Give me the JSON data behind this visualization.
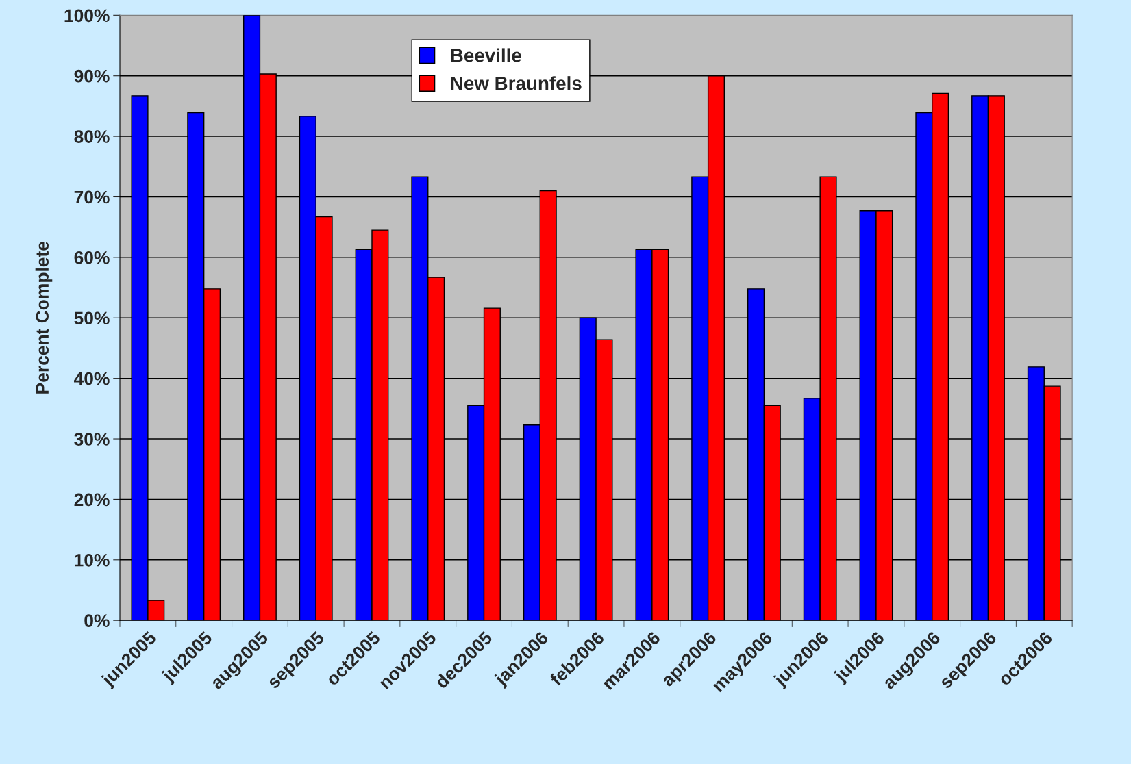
{
  "chart_data": {
    "type": "bar",
    "ylabel": "Percent Complete",
    "categories": [
      "jun2005",
      "jul2005",
      "aug2005",
      "sep2005",
      "oct2005",
      "nov2005",
      "dec2005",
      "jan2006",
      "feb2006",
      "mar2006",
      "apr2006",
      "may2006",
      "jun2006",
      "jul2006",
      "aug2006",
      "sep2006",
      "oct2006"
    ],
    "series": [
      {
        "name": "Beeville",
        "color": "#0000ff",
        "values": [
          86.7,
          83.9,
          100,
          83.3,
          61.3,
          73.3,
          35.5,
          32.3,
          50,
          61.3,
          73.3,
          54.8,
          36.7,
          67.7,
          83.9,
          86.7,
          41.9
        ]
      },
      {
        "name": "New Braunfels",
        "color": "#ff0000",
        "values": [
          3.3,
          54.8,
          90.3,
          66.7,
          64.5,
          56.7,
          51.6,
          71.0,
          46.4,
          61.3,
          90.0,
          35.5,
          73.3,
          67.7,
          87.1,
          86.7,
          38.7
        ]
      }
    ],
    "ylim": [
      0,
      100
    ],
    "yticks": [
      {
        "value": 0,
        "label": "0%"
      },
      {
        "value": 10,
        "label": "10%"
      },
      {
        "value": 20,
        "label": "20%"
      },
      {
        "value": 30,
        "label": "30%"
      },
      {
        "value": 40,
        "label": "40%"
      },
      {
        "value": 50,
        "label": "50%"
      },
      {
        "value": 60,
        "label": "60%"
      },
      {
        "value": 70,
        "label": "70%"
      },
      {
        "value": 80,
        "label": "80%"
      },
      {
        "value": 90,
        "label": "90%"
      },
      {
        "value": 100,
        "label": "100%"
      }
    ],
    "grid": "y",
    "legend": "top"
  }
}
